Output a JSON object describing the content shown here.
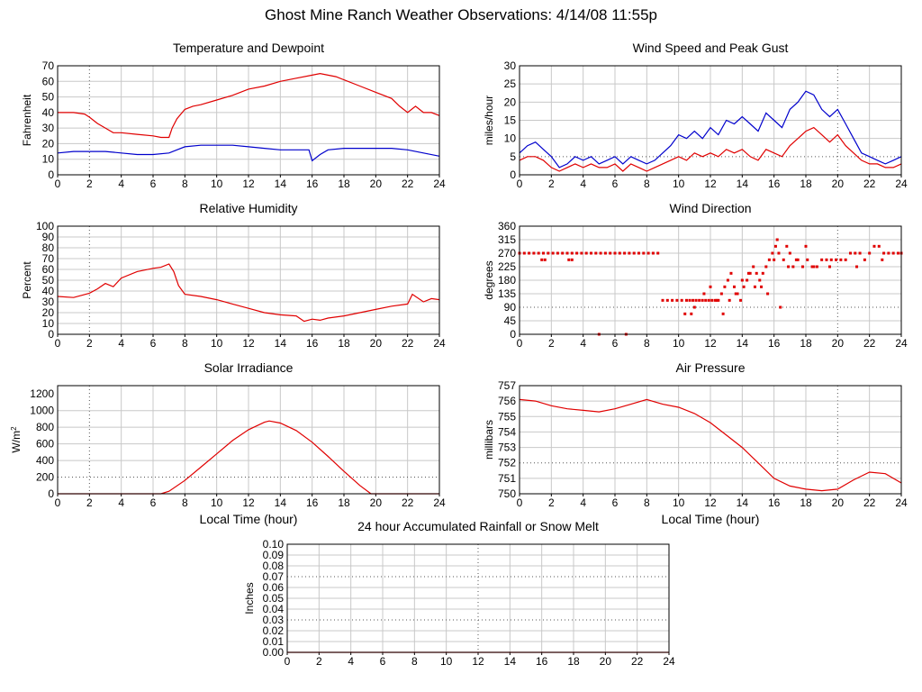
{
  "page_title": "Ghost Mine Ranch Weather Observations: 4/14/08 11:55p",
  "colors": {
    "red": "#e00000",
    "blue": "#0000cc",
    "grid_major": "#999999",
    "grid_minor": "#c8c8c8",
    "axis": "#000000"
  },
  "chart_data": [
    {
      "id": "temp",
      "type": "line",
      "title": "Temperature and Dewpoint",
      "xlabel": "",
      "ylabel": "Fahrenheit",
      "xlim": [
        0,
        24
      ],
      "ylim": [
        0,
        70
      ],
      "xticks": [
        "0",
        "2",
        "4",
        "6",
        "8",
        "10",
        "12",
        "14",
        "16",
        "18",
        "20",
        "22",
        "24"
      ],
      "yticks": [
        "0",
        "10",
        "20",
        "30",
        "40",
        "50",
        "60",
        "70"
      ],
      "series": [
        {
          "color": "#e00000",
          "x": [
            0,
            1,
            1.7,
            2,
            2.5,
            3,
            3.5,
            4,
            5,
            6,
            6.5,
            7,
            7.2,
            7.5,
            8,
            8.5,
            9,
            10,
            11,
            12,
            13,
            14,
            15,
            16,
            16.5,
            17,
            17.5,
            18,
            19,
            20,
            21,
            21.5,
            22,
            22.5,
            23,
            23.5,
            24
          ],
          "y": [
            40,
            40,
            39,
            37,
            33,
            30,
            27,
            27,
            26,
            25,
            24,
            24,
            30,
            36,
            42,
            44,
            45,
            48,
            51,
            55,
            57,
            60,
            62,
            64,
            65,
            64,
            63,
            61,
            57,
            53,
            49,
            44,
            40,
            44,
            40,
            40,
            38
          ]
        },
        {
          "color": "#0000cc",
          "x": [
            0,
            1,
            2,
            3,
            4,
            5,
            6,
            7,
            7.5,
            8,
            9,
            10,
            11,
            12,
            13,
            14,
            15,
            15.8,
            16,
            16.5,
            17,
            18,
            19,
            20,
            21,
            22,
            23,
            24
          ],
          "y": [
            14,
            15,
            15,
            15,
            14,
            13,
            13,
            14,
            16,
            18,
            19,
            19,
            19,
            18,
            17,
            16,
            16,
            16,
            9,
            13,
            16,
            17,
            17,
            17,
            17,
            16,
            14,
            12
          ]
        }
      ]
    },
    {
      "id": "wind",
      "type": "line",
      "title": "Wind Speed and Peak Gust",
      "xlabel": "",
      "ylabel": "miles/hour",
      "xlim": [
        0,
        24
      ],
      "ylim": [
        0,
        30
      ],
      "xticks": [
        "0",
        "2",
        "4",
        "6",
        "8",
        "10",
        "12",
        "14",
        "16",
        "18",
        "20",
        "22",
        "24"
      ],
      "yticks": [
        "0",
        "5",
        "10",
        "15",
        "20",
        "25",
        "30"
      ],
      "series": [
        {
          "color": "#0000cc",
          "x": [
            0,
            0.5,
            1,
            1.5,
            2,
            2.5,
            3,
            3.5,
            4,
            4.5,
            5,
            5.5,
            6,
            6.5,
            7,
            7.5,
            8,
            8.5,
            9,
            9.5,
            10,
            10.5,
            11,
            11.5,
            12,
            12.5,
            13,
            13.5,
            14,
            14.5,
            15,
            15.5,
            16,
            16.5,
            17,
            17.5,
            18,
            18.5,
            19,
            19.5,
            20,
            20.5,
            21,
            21.5,
            22,
            22.5,
            23,
            23.5,
            24
          ],
          "y": [
            6,
            8,
            9,
            7,
            5,
            2,
            3,
            5,
            4,
            5,
            3,
            4,
            5,
            3,
            5,
            4,
            3,
            4,
            6,
            8,
            11,
            10,
            12,
            10,
            13,
            11,
            15,
            14,
            16,
            14,
            12,
            17,
            15,
            13,
            18,
            20,
            23,
            22,
            18,
            16,
            18,
            14,
            10,
            6,
            5,
            4,
            3,
            4,
            5
          ]
        },
        {
          "color": "#e00000",
          "x": [
            0,
            0.5,
            1,
            1.5,
            2,
            2.5,
            3,
            3.5,
            4,
            4.5,
            5,
            5.5,
            6,
            6.5,
            7,
            7.5,
            8,
            8.5,
            9,
            9.5,
            10,
            10.5,
            11,
            11.5,
            12,
            12.5,
            13,
            13.5,
            14,
            14.5,
            15,
            15.5,
            16,
            16.5,
            17,
            17.5,
            18,
            18.5,
            19,
            19.5,
            20,
            20.5,
            21,
            21.5,
            22,
            22.5,
            23,
            23.5,
            24
          ],
          "y": [
            4,
            5,
            5,
            4,
            2,
            1,
            2,
            3,
            2,
            3,
            2,
            2,
            3,
            1,
            3,
            2,
            1,
            2,
            3,
            4,
            5,
            4,
            6,
            5,
            6,
            5,
            7,
            6,
            7,
            5,
            4,
            7,
            6,
            5,
            8,
            10,
            12,
            13,
            11,
            9,
            11,
            8,
            6,
            4,
            3,
            3,
            2,
            2,
            3
          ]
        }
      ]
    },
    {
      "id": "rh",
      "type": "line",
      "title": "Relative Humidity",
      "xlabel": "",
      "ylabel": "Percent",
      "xlim": [
        0,
        24
      ],
      "ylim": [
        0,
        100
      ],
      "xticks": [
        "0",
        "2",
        "4",
        "6",
        "8",
        "10",
        "12",
        "14",
        "16",
        "18",
        "20",
        "22",
        "24"
      ],
      "yticks": [
        "0",
        "10",
        "20",
        "30",
        "40",
        "50",
        "60",
        "70",
        "80",
        "90",
        "100"
      ],
      "series": [
        {
          "color": "#e00000",
          "x": [
            0,
            1,
            2,
            2.5,
            3,
            3.5,
            4,
            5,
            6,
            6.5,
            7,
            7.3,
            7.6,
            8,
            9,
            10,
            11,
            12,
            13,
            14,
            15,
            15.5,
            16,
            16.5,
            17,
            18,
            19,
            20,
            21,
            22,
            22.3,
            23,
            23.5,
            24
          ],
          "y": [
            35,
            34,
            38,
            42,
            47,
            44,
            52,
            58,
            61,
            62,
            65,
            58,
            45,
            37,
            35,
            32,
            28,
            24,
            20,
            18,
            17,
            12,
            14,
            13,
            15,
            17,
            20,
            23,
            26,
            28,
            37,
            30,
            33,
            32
          ]
        }
      ]
    },
    {
      "id": "dir",
      "type": "scatter",
      "title": "Wind Direction",
      "xlabel": "",
      "ylabel": "degrees",
      "xlim": [
        0,
        24
      ],
      "ylim": [
        0,
        360
      ],
      "xticks": [
        "0",
        "2",
        "4",
        "6",
        "8",
        "10",
        "12",
        "14",
        "16",
        "18",
        "20",
        "22",
        "24"
      ],
      "yticks": [
        "0",
        "45",
        "90",
        "135",
        "180",
        "225",
        "270",
        "315",
        "360"
      ],
      "series": [
        {
          "color": "#e00000",
          "x": [
            0,
            0.3,
            0.6,
            0.9,
            1.2,
            1.5,
            1.8,
            2.1,
            2.4,
            2.7,
            3.0,
            3.3,
            3.6,
            3.9,
            4.2,
            4.5,
            4.8,
            5.1,
            5.4,
            5.7,
            6.0,
            6.3,
            6.6,
            6.9,
            7.2,
            7.5,
            7.8,
            8.1,
            8.4,
            8.7,
            1.4,
            1.6,
            3.1,
            3.3,
            5.0,
            6.7,
            9.0,
            9.3,
            9.6,
            9.9,
            10.2,
            10.5,
            10.7,
            10.9,
            11.1,
            11.3,
            11.5,
            11.7,
            11.9,
            12.1,
            12.3,
            12.5,
            12.7,
            12.9,
            13.1,
            13.3,
            13.5,
            13.7,
            13.9,
            14.1,
            14.3,
            14.5,
            14.7,
            14.9,
            15.1,
            15.3,
            15.5,
            15.7,
            15.9,
            16.1,
            16.3,
            16.6,
            16.9,
            17.2,
            17.5,
            17.8,
            18.1,
            18.4,
            18.7,
            19.0,
            19.3,
            19.6,
            19.9,
            20.2,
            20.5,
            20.8,
            21.1,
            21.4,
            21.7,
            22.0,
            22.3,
            22.6,
            22.9,
            23.2,
            23.5,
            23.8,
            24,
            10.4,
            10.8,
            11.0,
            11.6,
            12.0,
            12.4,
            12.8,
            13.2,
            13.6,
            14.0,
            14.4,
            14.8,
            15.2,
            15.6,
            16.0,
            16.2,
            16.4,
            16.8,
            17.0,
            17.4,
            18.0,
            18.5,
            19.5,
            21.2,
            22.8
          ],
          "y": [
            270,
            270,
            270,
            270,
            270,
            270,
            270,
            270,
            270,
            270,
            270,
            270,
            270,
            270,
            270,
            270,
            270,
            270,
            270,
            270,
            270,
            270,
            270,
            270,
            270,
            270,
            270,
            270,
            270,
            270,
            248,
            248,
            248,
            248,
            0,
            0,
            113,
            113,
            113,
            113,
            113,
            113,
            113,
            113,
            113,
            113,
            113,
            113,
            113,
            113,
            113,
            113,
            135,
            158,
            180,
            203,
            158,
            135,
            113,
            158,
            180,
            203,
            225,
            203,
            180,
            203,
            225,
            248,
            270,
            293,
            270,
            248,
            225,
            225,
            248,
            225,
            248,
            225,
            225,
            248,
            248,
            248,
            248,
            248,
            248,
            270,
            270,
            270,
            248,
            270,
            293,
            293,
            270,
            270,
            270,
            270,
            270,
            68,
            68,
            90,
            135,
            158,
            113,
            68,
            113,
            135,
            180,
            203,
            158,
            158,
            135,
            248,
            315,
            90,
            293,
            270,
            248,
            293,
            225,
            225,
            225,
            248
          ]
        }
      ]
    },
    {
      "id": "solar",
      "type": "area",
      "title": "Solar Irradiance",
      "xlabel": "Local Time (hour)",
      "ylabel": "W/m",
      "ylabel_sup": "2",
      "xlim": [
        0,
        24
      ],
      "ylim": [
        0,
        1300
      ],
      "xticks": [
        "0",
        "2",
        "4",
        "6",
        "8",
        "10",
        "12",
        "14",
        "16",
        "18",
        "20",
        "22",
        "24"
      ],
      "yticks": [
        "0",
        "200",
        "400",
        "600",
        "800",
        "1000",
        "1200"
      ],
      "series": [
        {
          "color": "#e00000",
          "x": [
            0,
            6.5,
            7,
            8,
            9,
            10,
            11,
            12,
            13,
            13.3,
            14,
            15,
            16,
            17,
            18,
            19,
            19.7,
            24
          ],
          "y": [
            0,
            0,
            30,
            160,
            320,
            480,
            640,
            770,
            860,
            875,
            850,
            760,
            620,
            450,
            270,
            100,
            0,
            0
          ]
        }
      ]
    },
    {
      "id": "pressure",
      "type": "line",
      "title": "Air Pressure",
      "xlabel": "Local Time (hour)",
      "ylabel": "millibars",
      "xlim": [
        0,
        24
      ],
      "ylim": [
        750,
        757
      ],
      "xticks": [
        "0",
        "2",
        "4",
        "6",
        "8",
        "10",
        "12",
        "14",
        "16",
        "18",
        "20",
        "22",
        "24"
      ],
      "yticks": [
        "750",
        "751",
        "752",
        "753",
        "754",
        "755",
        "756",
        "757"
      ],
      "series": [
        {
          "color": "#e00000",
          "x": [
            0,
            1,
            2,
            3,
            4,
            5,
            6,
            7,
            8,
            9,
            10,
            11,
            12,
            13,
            14,
            15,
            16,
            17,
            18,
            19,
            20,
            21,
            22,
            23,
            24
          ],
          "y": [
            756.1,
            756.0,
            755.7,
            755.5,
            755.4,
            755.3,
            755.5,
            755.8,
            756.1,
            755.8,
            755.6,
            755.2,
            754.6,
            753.8,
            753.0,
            752.0,
            751.0,
            750.5,
            750.3,
            750.2,
            750.3,
            750.9,
            751.4,
            751.3,
            750.7
          ]
        }
      ]
    },
    {
      "id": "rain",
      "type": "line",
      "title": "24 hour Accumulated Rainfall or Snow Melt",
      "xlabel": "",
      "ylabel": "Inches",
      "xlim": [
        0,
        24
      ],
      "ylim": [
        0,
        0.1
      ],
      "xticks": [
        "0",
        "2",
        "4",
        "6",
        "8",
        "10",
        "12",
        "14",
        "16",
        "18",
        "20",
        "22",
        "24"
      ],
      "yticks": [
        "0.00",
        "0.01",
        "0.02",
        "0.03",
        "0.04",
        "0.05",
        "0.06",
        "0.07",
        "0.08",
        "0.09",
        "0.10"
      ],
      "series": [
        {
          "color": "#e00000",
          "x": [
            0,
            24
          ],
          "y": [
            0,
            0
          ]
        }
      ]
    }
  ]
}
